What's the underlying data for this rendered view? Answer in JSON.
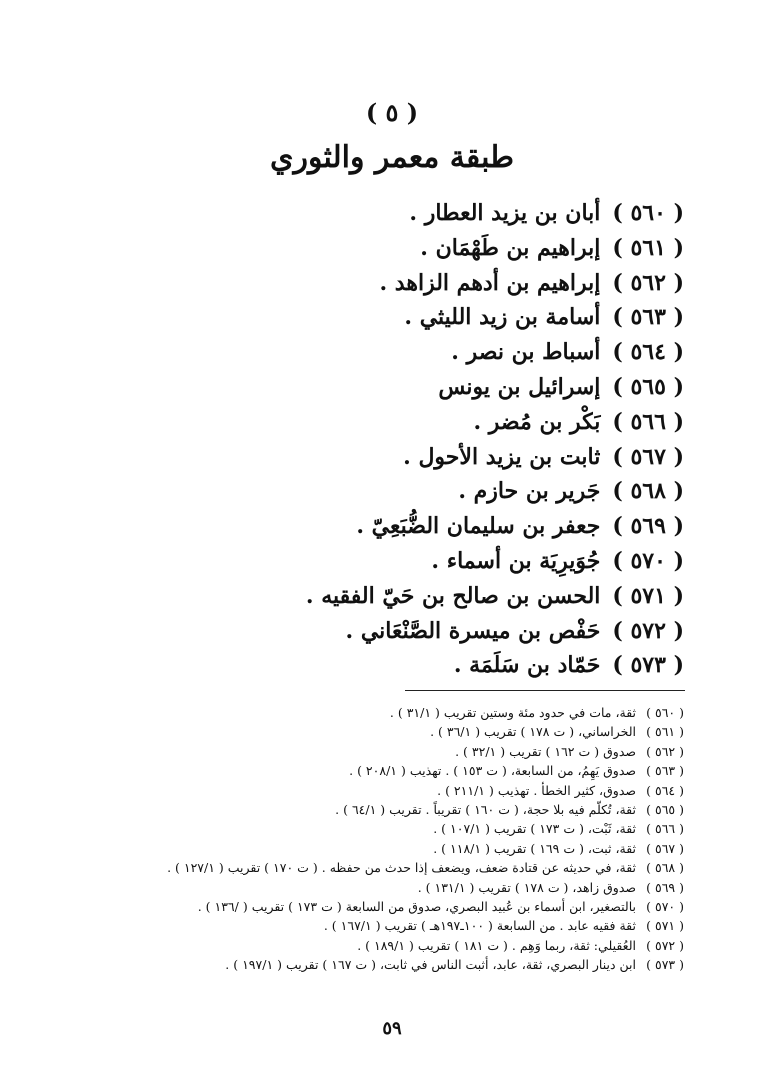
{
  "section_number": "( ٥ )",
  "section_title": "طبقة معمر والثوري",
  "entries": [
    {
      "num": "( ٥٦٠ )",
      "name": "أبان بن يزيد العطار ."
    },
    {
      "num": "( ٥٦١ )",
      "name": "إبراهيم بن طَهْمَان ."
    },
    {
      "num": "( ٥٦٢ )",
      "name": "إبراهيم بن أدهم الزاهد ."
    },
    {
      "num": "( ٥٦٣ )",
      "name": "أسامة بن زيد الليثي ."
    },
    {
      "num": "( ٥٦٤ )",
      "name": "أسباط بن نصر ."
    },
    {
      "num": "( ٥٦٥ )",
      "name": "إسرائيل بن يونس"
    },
    {
      "num": "( ٥٦٦ )",
      "name": "بَكْر بن مُضر ."
    },
    {
      "num": "( ٥٦٧ )",
      "name": "ثابت بن يزيد الأحول ."
    },
    {
      "num": "( ٥٦٨ )",
      "name": "جَرير بن حازم ."
    },
    {
      "num": "( ٥٦٩ )",
      "name": "جعفر بن سليمان الضُّبَعِيّ ."
    },
    {
      "num": "( ٥٧٠ )",
      "name": "جُوَيرِيَة بن أسماء ."
    },
    {
      "num": "( ٥٧١ )",
      "name": "الحسن بن صالح بن حَيّ الفقيه ."
    },
    {
      "num": "( ٥٧٢ )",
      "name": "حَفْص بن ميسرة الصَّنْعَاني ."
    },
    {
      "num": "( ٥٧٣ )",
      "name": "حَمّاد بن سَلَمَة ."
    }
  ],
  "footnotes": [
    {
      "num": "( ٥٦٠ )",
      "text": "ثقة، مات في حدود مئة وستين تقريب ( ٣١/١ ) ."
    },
    {
      "num": "( ٥٦١ )",
      "text": "الخراساني، ( ت ١٧٨ ) تقريب ( ٣٦/١ ) ."
    },
    {
      "num": "( ٥٦٢ )",
      "text": "صدوق ( ت ١٦٢ ) تقريب ( ٣٢/١ ) ."
    },
    {
      "num": "( ٥٦٣ )",
      "text": "صدوق يَهِمُ، من السابعة، ( ت ١٥٣ ) . تهذيب ( ٢٠٨/١ ) ."
    },
    {
      "num": "( ٥٦٤ )",
      "text": "صدوق، كثير الخطأ . تهذيب ( ٢١١/١ ) ."
    },
    {
      "num": "( ٥٦٥ )",
      "text": "ثقة، تُكلّم فيه بلا حجة، ( ت ١٦٠ ) تقريباً . تقريب ( ٦٤/١ ) ."
    },
    {
      "num": "( ٥٦٦ )",
      "text": "ثقة، ثَبْت، ( ت ١٧٣ ) تقريب ( ١٠٧/١ ) ."
    },
    {
      "num": "( ٥٦٧ )",
      "text": "ثقة، ثبت، ( ت ١٦٩ ) تقريب ( ١١٨/١ ) ."
    },
    {
      "num": "( ٥٦٨ )",
      "text": "ثقة، في حديثه عن قتادة ضعف، ويضعف إذا حدث من حفظه . ( ت ١٧٠ ) تقريب ( ١٢٧/١ ) ."
    },
    {
      "num": "( ٥٦٩ )",
      "text": "صدوق زاهد، ( ت ١٧٨ ) تقريب ( ١٣١/١ ) ."
    },
    {
      "num": "( ٥٧٠ )",
      "text": "بالتصغير، ابن أسماء بن عُبيد البصري، صدوق من السابعة ( ت ١٧٣ ) تقريب ( /١٣٦ ) ."
    },
    {
      "num": "( ٥٧١ )",
      "text": "ثقة فقيه عابد . من السابعة ( ١٠٠ـ١٩٧هـ ) تقريب ( ١٦٧/١ ) ."
    },
    {
      "num": "( ٥٧٢ )",
      "text": "العُقيلي: ثقة، ربما وَهِم . ( ت ١٨١ ) تقريب ( ١٨٩/١ ) ."
    },
    {
      "num": "( ٥٧٣ )",
      "text": "ابن دينار البصري، ثقة، عابد، أثبت الناس في ثابت، ( ت ١٦٧ ) تقريب ( ١٩٧/١ ) ."
    }
  ],
  "page_number": "٥٩"
}
